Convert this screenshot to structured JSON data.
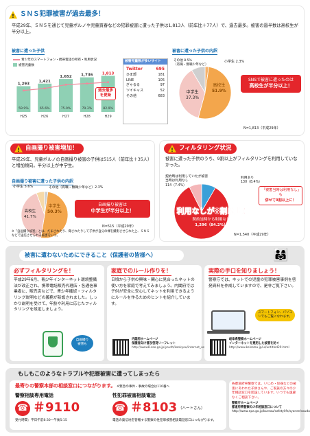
{
  "s1": {
    "title": "ＳＮＳ犯罪被害が過去最多！",
    "body": "平成29年、ＳＮＳを通じて児童ポルノや児童買春などの犯罪被害に遭った子供は1,813人（前年比＋77人）で、過去最多。被害の過半数は高校生が半分以上。",
    "h_left": "被害に遭った子供",
    "h_right": "被害に遭った子供の内訳",
    "legend": [
      "青少年のスマートフォン・携帯電話の所有・利用状況",
      "被害児童数"
    ],
    "site_box_title": "被害児童数が多いサイト",
    "sites": [
      [
        "Twitter",
        "695"
      ],
      [
        "ひま部",
        "181"
      ],
      [
        "LINE",
        "105"
      ],
      [
        "ぎゃるる",
        "97"
      ],
      [
        "ツイキャス",
        "52"
      ],
      [
        "その他",
        "683"
      ]
    ],
    "callout": "過去最多を更新",
    "pie_center": [
      "高校生",
      "51.9%"
    ],
    "pie_mid": [
      "中学生",
      "37.3%"
    ],
    "pie_other": [
      "その他 8.5%",
      "（有職・無職少年など）"
    ],
    "pie_elem": "小学生 2.3%",
    "badge": [
      "SNSで被害に遭ったのは",
      "高校生が半分以上！"
    ],
    "total": "N=1,813（平成29年）"
  },
  "chart_data": {
    "type": "bar",
    "categories": [
      "H25",
      "H26",
      "H27",
      "H28",
      "H29"
    ],
    "values": [
      1293,
      1421,
      1652,
      1736,
      1813
    ],
    "line_values": [
      59.9,
      65.6,
      75.9,
      79.3,
      82.9
    ],
    "line_labels": [
      "59.9%",
      "65.6%",
      "75.9%",
      "79.3%",
      "82.9%"
    ]
  },
  "s2": {
    "title": "自画撮り被害増加！",
    "body": "平成29年、児童ポルノの自画撮り被害の子供は515人（前年比＋35人）と増加傾向。半分以上が中学生。",
    "h": "自画撮り被害に遭った子供の内訳",
    "pie_center": [
      "高校生",
      "41.7%"
    ],
    "pie_mid": [
      "中学生",
      "50.3%"
    ],
    "pie_elem": "小学生 5.6%",
    "pie_other": "その他（有職・無職少年など）2.3%",
    "badge": [
      "自画撮り被害は",
      "中学生が半分以上！"
    ],
    "total": "N=515（平成29年）",
    "note": "※「自画撮り被害」とは、だまされたり、脅されたりして子供が自分の裸を撮影させられた上、ＳＮＳなどで送信させられる被害をいう。"
  },
  "s3": {
    "title": "フィルタリング状況",
    "body": "被害に遭った子供のうち、9割以上がフィルタリングを利用していなかった。",
    "l1": "契約時は利用していたが被害当時は利用なし",
    "l1v": "114（7.4%）",
    "l2": "利用あり",
    "l2v": "130（8.4%）",
    "badge": [
      "「被害当時は利用なし」も",
      "併せて9割以上に！"
    ],
    "big": "利用なしが8割以上！",
    "big_sub": [
      "契約当時から利用なし",
      "1,296（84.2%）"
    ],
    "total": "N=1,540（平成29年）"
  },
  "s4": {
    "title": "被害に遭わないためにできること（保護者の皆様へ）",
    "c1t": "必ずフィルタリングを！",
    "c1b": "平成29年6月、青少年インターネット環境整備法が改正され、携帯電話販売代理店・各通信事業者に、販売店などで、青少年確認・フィルタリング説明などの義務が新設されました。しっかり説明を受けて、年齢や利用に応じたフィルタリングを設定しましょう。",
    "c1badge": [
      "自画撮り",
      "被害も"
    ],
    "c2t": "家庭でのルール作りを！",
    "c2b": "日頃から子供の興味・関心に見合ったネットの使い方を家庭で考えてみましょう。内閣府では子供が安全に安心してネットを利用できるようにルールを作るためのヒントを紹介しています。",
    "c2qr": [
      "内閣府ホームページ",
      "保護者向け普及啓発リーフレット",
      "http://www8.cao.go.jp/youth/kankyou/internet_use/leaflet.html"
    ],
    "c3t": "実際の手口を知りましょう！",
    "c3b": "警察庁では、ネットでの児童の犯罪被害事例を啓発資料を作成していますので、是非ご覧下さい。",
    "c3bubble": [
      "スマートフォン、パソコンでもご覧になれます。"
    ],
    "c3qr": [
      "岐阜県警察ホームページ",
      "インターネットを悪用した被害を防ぐ",
      "http://www.kelsatsu.jp/ul/untitled29.html"
    ]
  },
  "s5": {
    "title": "もしもこのようなトラブルや犯罪被害に遭ってしまったら",
    "lead": "最寄りの警察本部の相談窓口につながります。",
    "lead2": "※緊急の事件・事故の場合は110番へ",
    "n1l": "警察相談専用電話",
    "n1": "＃9110",
    "n1s": "受付時間：平日午前8:30〜午後5:15",
    "n2l": "性犯罪被害相談電話",
    "n2": "＃8103",
    "n2r": "（ハートさん）",
    "n2s": "電話の発信地を管轄する警察の性犯罪被害相談電話窓口につながります。",
    "right": "各都道府県警察では、いじめ・犯罪などの被害にあわれた子供さんや、ご家族の方々の少年相談窓口を開設しています。いつでも遠慮なくご相談下さい。",
    "r_link": [
      "警察庁ホームページ",
      "都道府県警察の少年相談窓口について",
      "http://www.npa.go.jp/bureau/safetylife/syonen/soudan.html"
    ]
  }
}
